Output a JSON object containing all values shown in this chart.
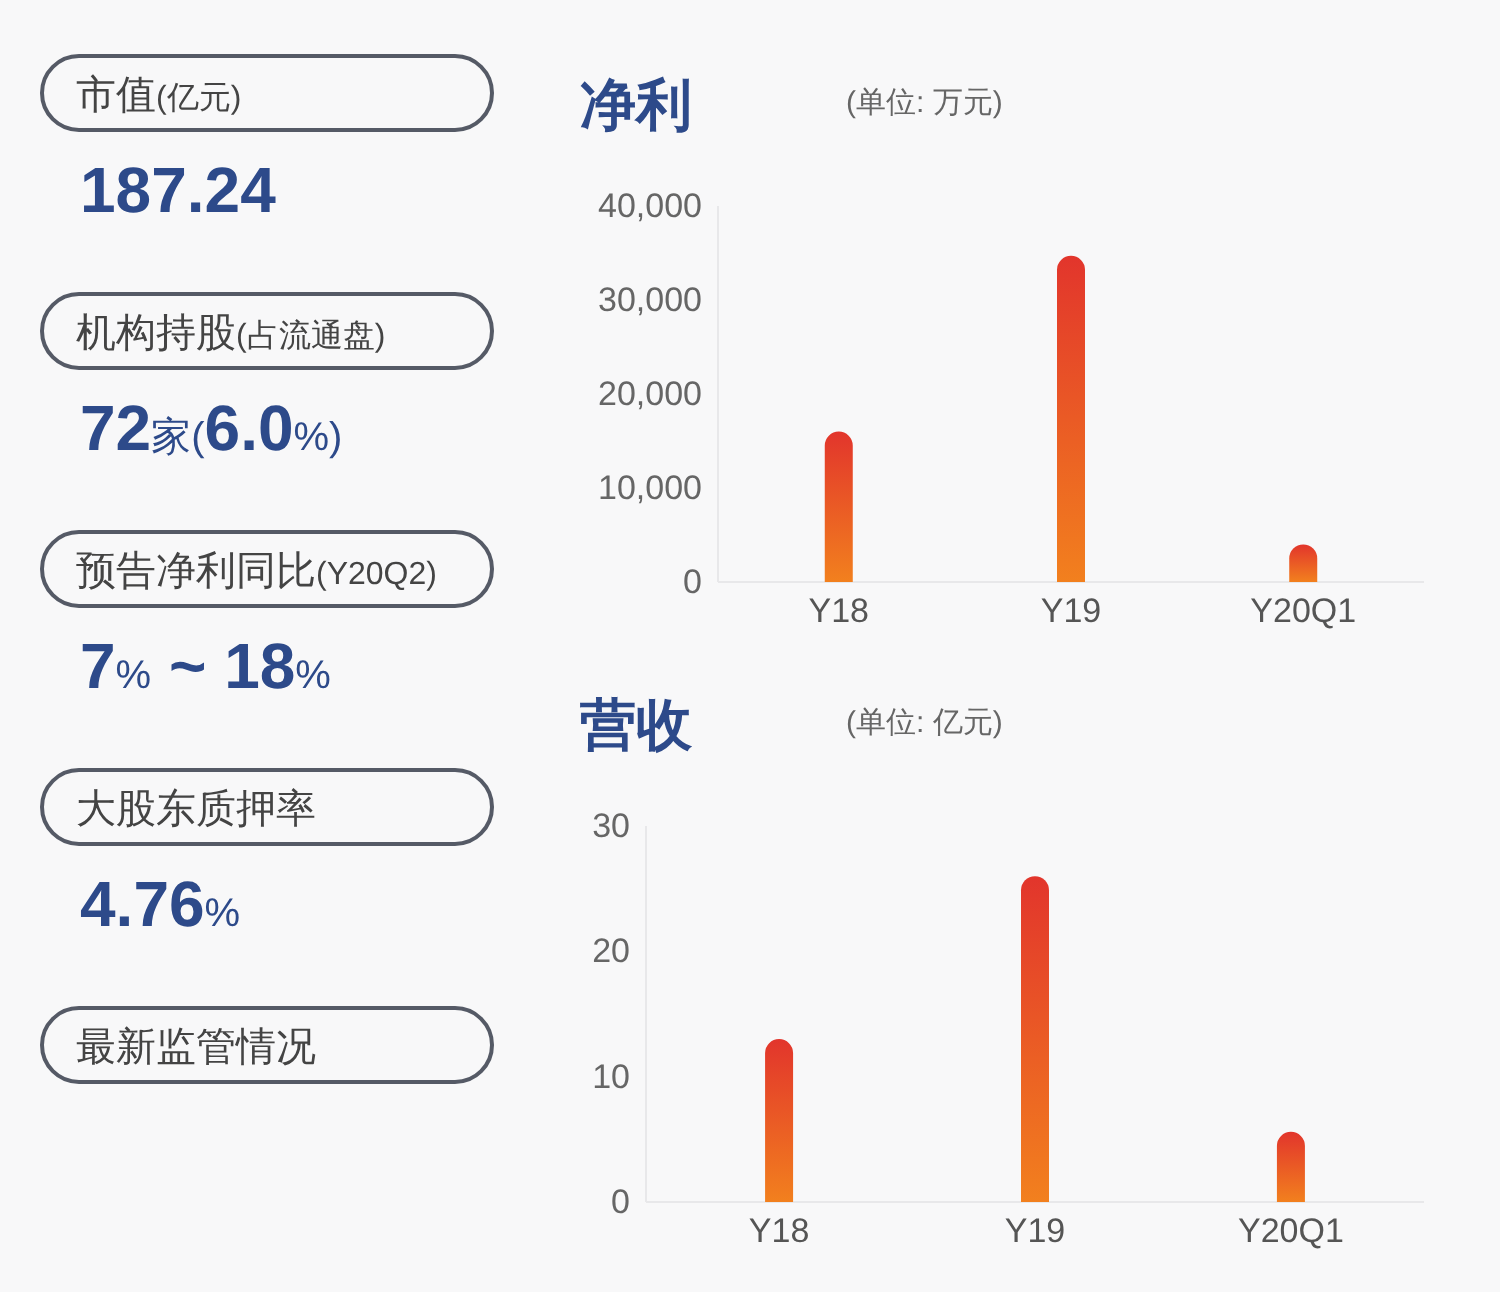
{
  "chart_data": [
    {
      "type": "other",
      "annotations": [
        "市值(亿元)",
        "187.24",
        "机构持股(占流通盘)",
        "72家(6.0%)",
        "预告净利同比(Y20Q2)",
        "7% ~ 18%",
        "大股东质押率",
        "4.76%",
        "最新监管情况"
      ]
    },
    {
      "type": "bar",
      "title": "净利",
      "subtitle": "(单位: 万元)",
      "categories": [
        "Y18",
        "Y19",
        "Y20Q1"
      ],
      "values": [
        16000,
        34700,
        4000
      ],
      "color": "#e2352c",
      "ylim": [
        0,
        40000
      ],
      "yticks": [
        0,
        {
          "value": 10000,
          "label": "10,000"
        },
        {
          "value": 20000,
          "label": "20,000"
        },
        {
          "value": 30000,
          "label": "30,000"
        },
        {
          "value": 40000,
          "label": "40,000"
        }
      ],
      "grid": false
    },
    {
      "type": "bar",
      "title": "营收",
      "subtitle": "(单位: 亿元)",
      "categories": [
        "Y18",
        "Y19",
        "Y20Q1"
      ],
      "values": [
        13.0,
        26.0,
        5.6
      ],
      "color": "#e2352c",
      "ylim": [
        0,
        30
      ],
      "yticks": [
        0,
        10,
        20,
        30
      ],
      "grid": false
    }
  ]
}
